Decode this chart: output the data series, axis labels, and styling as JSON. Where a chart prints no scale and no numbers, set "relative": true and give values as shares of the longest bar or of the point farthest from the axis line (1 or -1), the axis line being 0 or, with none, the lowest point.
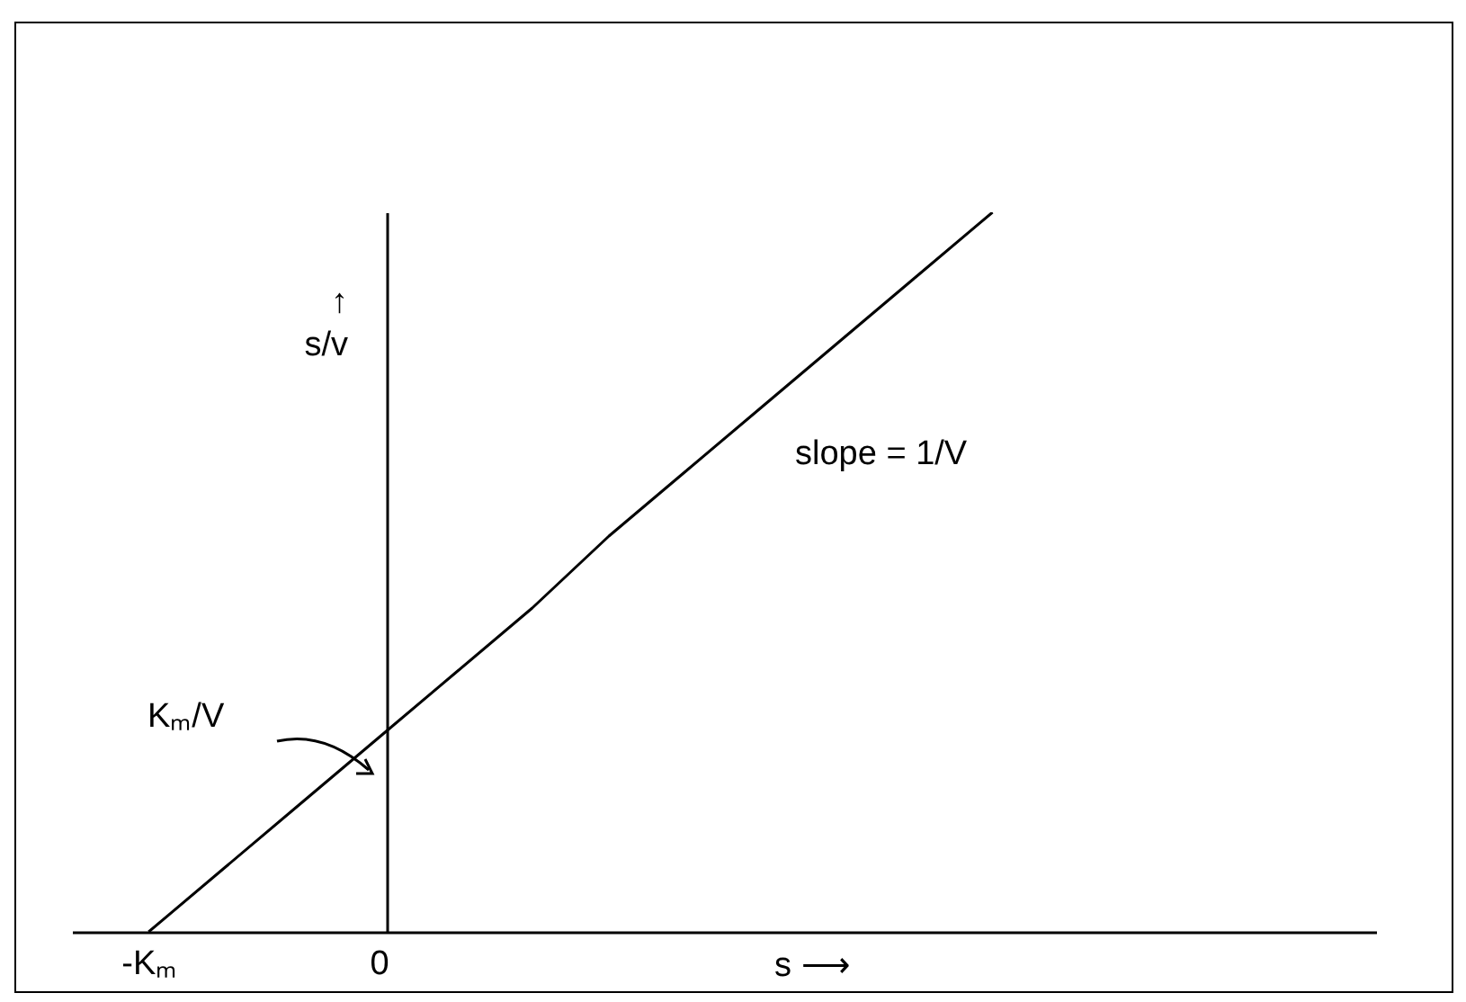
{
  "chart_data": {
    "type": "line",
    "relative": true,
    "xlabel": "s ⟶",
    "ylabel": "↑\ns/v",
    "categories": [
      "-Kₘ",
      null,
      null,
      "0",
      null,
      null,
      null,
      null,
      null,
      null,
      null,
      null,
      null,
      null,
      null,
      null
    ],
    "series": [
      {
        "color": "#000000",
        "values": [
          0,
          0.09,
          0.18,
          0.27,
          0.36,
          0.45,
          0.55,
          0.64,
          0.73,
          0.82,
          0.91,
          1,
          null,
          null,
          null,
          null
        ]
      }
    ],
    "annotations": [
      "Kₘ/V",
      "slope = 1/V"
    ],
    "marker": "none",
    "line_style": "solid"
  }
}
